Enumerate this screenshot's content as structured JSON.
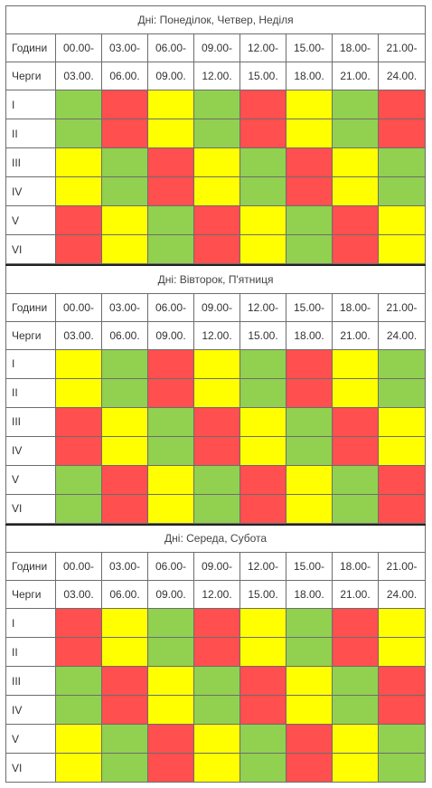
{
  "labels": {
    "hours": "Години",
    "queues": "Черги"
  },
  "time_from": [
    "00.00-",
    "03.00-",
    "06.00-",
    "09.00-",
    "12.00-",
    "15.00-",
    "18.00-",
    "21.00-"
  ],
  "time_to": [
    "03.00.",
    "06.00.",
    "09.00.",
    "12.00.",
    "15.00.",
    "18.00.",
    "21.00.",
    "24.00."
  ],
  "colors": {
    "g": "#92d050",
    "r": "#ff4f4f",
    "y": "#ffff00"
  },
  "tables": [
    {
      "title": "Дні: Понеділок, Четвер, Неділя",
      "rows": [
        {
          "label": "I",
          "cells": [
            "g",
            "r",
            "y",
            "g",
            "r",
            "y",
            "g",
            "r"
          ]
        },
        {
          "label": "II",
          "cells": [
            "g",
            "r",
            "y",
            "g",
            "r",
            "y",
            "g",
            "r"
          ]
        },
        {
          "label": "III",
          "cells": [
            "y",
            "g",
            "r",
            "y",
            "g",
            "r",
            "y",
            "g"
          ]
        },
        {
          "label": "IV",
          "cells": [
            "y",
            "g",
            "r",
            "y",
            "g",
            "r",
            "y",
            "g"
          ]
        },
        {
          "label": "V",
          "cells": [
            "r",
            "y",
            "g",
            "r",
            "y",
            "g",
            "r",
            "y"
          ]
        },
        {
          "label": "VI",
          "cells": [
            "r",
            "y",
            "g",
            "r",
            "y",
            "g",
            "r",
            "y"
          ]
        }
      ]
    },
    {
      "title": "Дні: Вівторок, П'ятниця",
      "rows": [
        {
          "label": "I",
          "cells": [
            "y",
            "g",
            "r",
            "y",
            "g",
            "r",
            "y",
            "g"
          ]
        },
        {
          "label": "II",
          "cells": [
            "y",
            "g",
            "r",
            "y",
            "g",
            "r",
            "y",
            "g"
          ]
        },
        {
          "label": "III",
          "cells": [
            "r",
            "y",
            "g",
            "r",
            "y",
            "g",
            "r",
            "y"
          ]
        },
        {
          "label": "IV",
          "cells": [
            "r",
            "y",
            "g",
            "r",
            "y",
            "g",
            "r",
            "y"
          ]
        },
        {
          "label": "V",
          "cells": [
            "g",
            "r",
            "y",
            "g",
            "r",
            "y",
            "g",
            "r"
          ]
        },
        {
          "label": "VI",
          "cells": [
            "g",
            "r",
            "y",
            "g",
            "r",
            "y",
            "g",
            "r"
          ]
        }
      ]
    },
    {
      "title": "Дні:  Середа, Субота",
      "rows": [
        {
          "label": "I",
          "cells": [
            "r",
            "y",
            "g",
            "r",
            "y",
            "g",
            "r",
            "y"
          ]
        },
        {
          "label": "II",
          "cells": [
            "r",
            "y",
            "g",
            "r",
            "y",
            "g",
            "r",
            "y"
          ]
        },
        {
          "label": "III",
          "cells": [
            "g",
            "r",
            "y",
            "g",
            "r",
            "y",
            "g",
            "r"
          ]
        },
        {
          "label": "IV",
          "cells": [
            "g",
            "r",
            "y",
            "g",
            "r",
            "y",
            "g",
            "r"
          ]
        },
        {
          "label": "V",
          "cells": [
            "y",
            "g",
            "r",
            "y",
            "g",
            "r",
            "y",
            "g"
          ]
        },
        {
          "label": "VI",
          "cells": [
            "y",
            "g",
            "r",
            "y",
            "g",
            "r",
            "y",
            "g"
          ]
        }
      ]
    }
  ]
}
